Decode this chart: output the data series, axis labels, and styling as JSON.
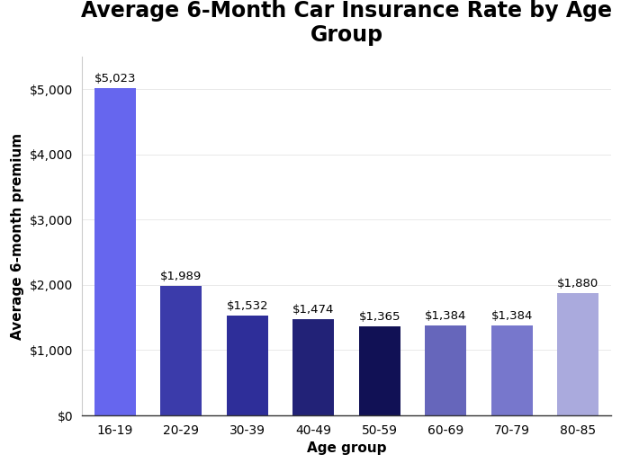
{
  "categories": [
    "16-19",
    "20-29",
    "30-39",
    "40-49",
    "50-59",
    "60-69",
    "70-79",
    "80-85"
  ],
  "values": [
    5023,
    1989,
    1532,
    1474,
    1365,
    1384,
    1384,
    1880
  ],
  "bar_colors": [
    "#6666EE",
    "#3B3BAA",
    "#2E2E99",
    "#222277",
    "#111155",
    "#6666BB",
    "#7777CC",
    "#AAAADD"
  ],
  "labels": [
    "$5,023",
    "$1,989",
    "$1,532",
    "$1,474",
    "$1,365",
    "$1,384",
    "$1,384",
    "$1,880"
  ],
  "title": "Average 6-Month Car Insurance Rate by Age\nGroup",
  "xlabel": "Age group",
  "ylabel": "Average 6-month premium",
  "ylim": [
    0,
    5500
  ],
  "yticks": [
    0,
    1000,
    2000,
    3000,
    4000,
    5000
  ],
  "background_color": "#ffffff",
  "title_fontsize": 17,
  "label_fontsize": 11,
  "tick_fontsize": 10,
  "bar_label_fontsize": 9.5
}
